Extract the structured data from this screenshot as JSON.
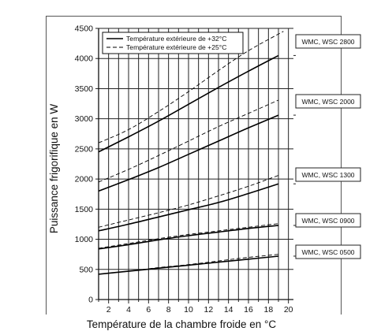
{
  "chart_data": {
    "type": "line",
    "xlabel": "Température de la chambre froide en °C",
    "ylabel": "Puissance frigorifique en W",
    "xlim": [
      1,
      20.5
    ],
    "ylim": [
      0,
      4500
    ],
    "xticks": [
      2,
      4,
      6,
      8,
      10,
      12,
      14,
      16,
      18,
      20
    ],
    "yticks": [
      0,
      500,
      1000,
      1500,
      2000,
      2500,
      3000,
      3500,
      4000,
      4500
    ],
    "grid": true,
    "legend": {
      "position": "top-left",
      "entries": [
        {
          "label": "Température extérieure de +32°C",
          "style": "solid"
        },
        {
          "label": "Température extérieure de +25°C",
          "style": "dashed"
        }
      ]
    },
    "series": [
      {
        "group": "WMC, WSC 2800",
        "style": "solid",
        "x": [
          1,
          4,
          7,
          10,
          13,
          16,
          19
        ],
        "y": [
          2450,
          2700,
          2960,
          3240,
          3520,
          3790,
          4050
        ]
      },
      {
        "group": "WMC, WSC 2800",
        "style": "dashed",
        "x": [
          1,
          4,
          7,
          10,
          13,
          16,
          19.5
        ],
        "y": [
          2600,
          2820,
          3120,
          3450,
          3800,
          4130,
          4450
        ]
      },
      {
        "group": "WMC, WSC 2000",
        "style": "solid",
        "x": [
          1,
          4,
          7,
          10,
          13,
          16,
          19
        ],
        "y": [
          1800,
          1990,
          2190,
          2410,
          2630,
          2850,
          3060
        ]
      },
      {
        "group": "WMC, WSC 2000",
        "style": "dashed",
        "x": [
          1,
          4,
          7,
          10,
          13,
          16,
          19
        ],
        "y": [
          1950,
          2160,
          2390,
          2630,
          2870,
          3090,
          3310
        ]
      },
      {
        "group": "WMC, WSC 1300",
        "style": "solid",
        "x": [
          1,
          4,
          7,
          10,
          13,
          16,
          19
        ],
        "y": [
          1140,
          1250,
          1370,
          1490,
          1610,
          1760,
          1920
        ]
      },
      {
        "group": "WMC, WSC 1300",
        "style": "dashed",
        "x": [
          1,
          4,
          7,
          10,
          13,
          16,
          19
        ],
        "y": [
          1200,
          1320,
          1440,
          1570,
          1720,
          1880,
          2060
        ]
      },
      {
        "group": "WMC, WSC 0900",
        "style": "solid",
        "x": [
          1,
          4,
          7,
          10,
          13,
          16,
          19
        ],
        "y": [
          840,
          910,
          990,
          1060,
          1120,
          1180,
          1230
        ]
      },
      {
        "group": "WMC, WSC 0900",
        "style": "dashed",
        "x": [
          1,
          4,
          7,
          10,
          13,
          16,
          19
        ],
        "y": [
          850,
          930,
          1010,
          1080,
          1140,
          1200,
          1260
        ]
      },
      {
        "group": "WMC, WSC 0500",
        "style": "solid",
        "x": [
          1,
          4,
          7,
          10,
          13,
          16,
          19
        ],
        "y": [
          420,
          470,
          520,
          570,
          620,
          670,
          720
        ]
      },
      {
        "group": "WMC, WSC 0500",
        "style": "dashed",
        "x": [
          1,
          4,
          7,
          10,
          13,
          16,
          19
        ],
        "y": [
          420,
          470,
          530,
          580,
          640,
          700,
          750
        ]
      }
    ],
    "model_labels": [
      {
        "text": "WMC, WSC 2800",
        "anchor_y": 4050
      },
      {
        "text": "WMC, WSC 2000",
        "anchor_y": 3060
      },
      {
        "text": "WMC, WSC 1300",
        "anchor_y": 1920
      },
      {
        "text": "WMC, WSC 0900",
        "anchor_y": 1230
      },
      {
        "text": "WMC, WSC 0500",
        "anchor_y": 720
      }
    ]
  }
}
